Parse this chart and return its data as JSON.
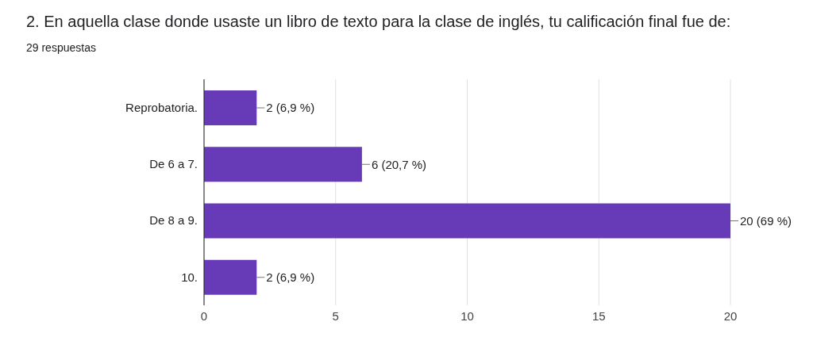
{
  "chart_data": {
    "type": "bar",
    "orientation": "horizontal",
    "title": "2. En aquella clase donde usaste un libro de texto para la clase de inglés, tu calificación final fue de:",
    "subtitle": "29 respuestas",
    "categories": [
      "Reprobatoria.",
      "De 6 a 7.",
      "De 8 a 9.",
      "10."
    ],
    "values": [
      2,
      6,
      20,
      2
    ],
    "value_labels": [
      "2 (6,9 %)",
      "6 (20,7 %)",
      "20 (69 %)",
      "2 (6,9 %)"
    ],
    "color": "#673ab7",
    "xlim": [
      0,
      20
    ],
    "xticks": [
      0,
      5,
      10,
      15,
      20
    ],
    "grid": "x",
    "legend": false
  }
}
